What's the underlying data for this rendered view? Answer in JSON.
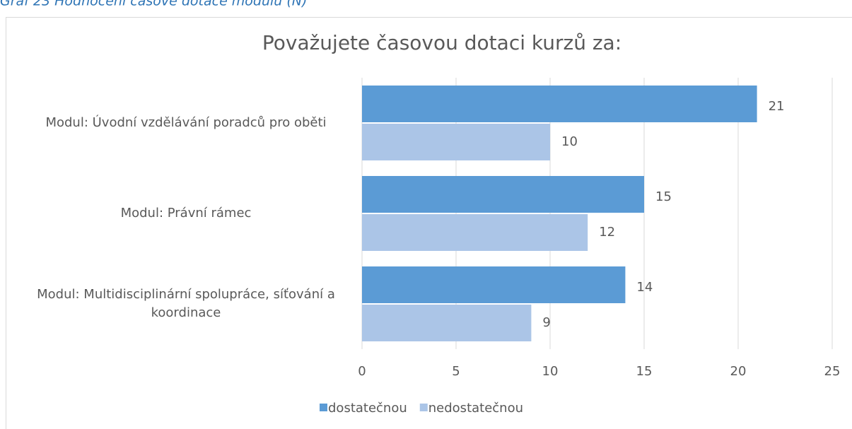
{
  "caption": "Graf 23 Hodnocení časové dotace modulů (N)",
  "chart_data": {
    "type": "bar",
    "orientation": "horizontal",
    "title": "Považujete časovou dotaci kurzů za:",
    "categories": [
      "Modul: Úvodní vzdělávání poradců pro oběti",
      "Modul: Právní rámec",
      "Modul: Multidisciplinární spolupráce, síťování a koordinace"
    ],
    "series": [
      {
        "name": "dostatečnou",
        "color": "#5b9bd5",
        "values": [
          21,
          15,
          14
        ]
      },
      {
        "name": "nedostatečnou",
        "color": "#abc5e7",
        "values": [
          10,
          12,
          9
        ]
      }
    ],
    "xlim": [
      0,
      25
    ],
    "xticks": [
      0,
      5,
      10,
      15,
      20,
      25
    ],
    "grid": true,
    "legend": "bottom"
  }
}
